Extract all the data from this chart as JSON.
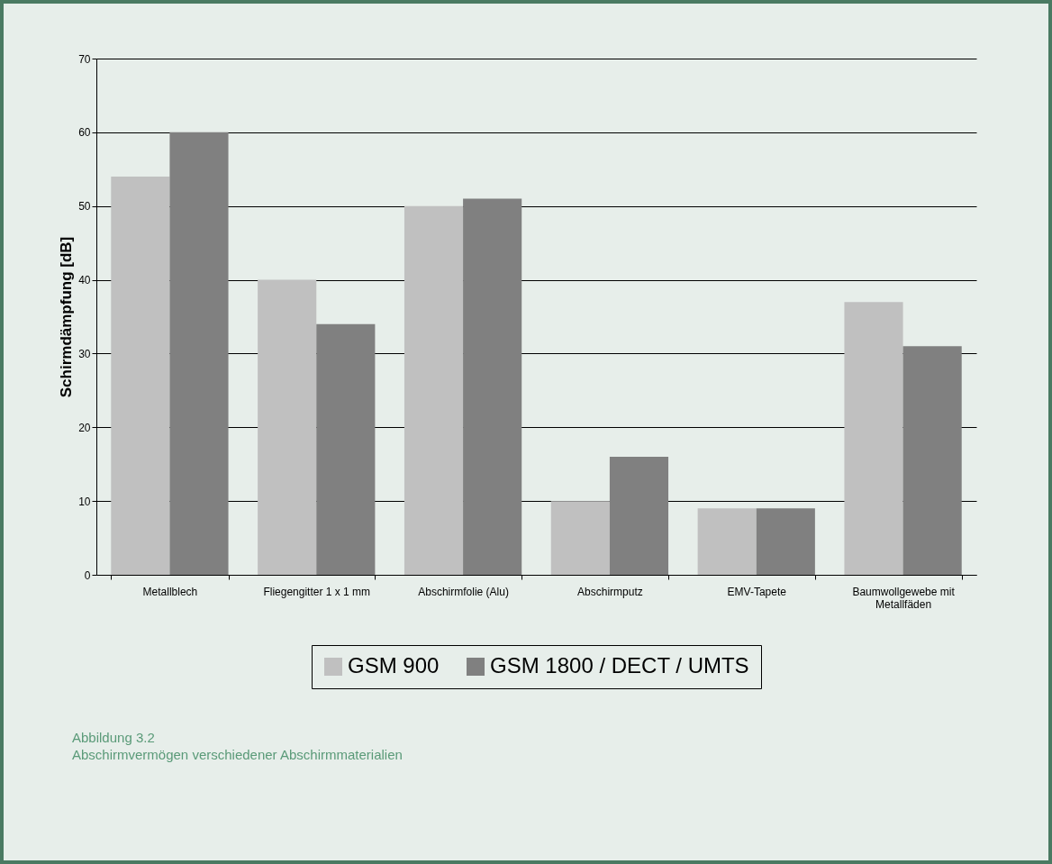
{
  "chart_data": {
    "type": "bar",
    "ylabel": "Schirmdämpfung [dB]",
    "categories": [
      "Metallblech",
      "Fliegengitter 1 x 1 mm",
      "Abschirmfolie (Alu)",
      "Abschirmputz",
      "EMV-Tapete",
      "Baumwollgewebe mit Metallfäden"
    ],
    "series": [
      {
        "name": "GSM 900",
        "color": "#c0c0c0",
        "values": [
          54,
          40,
          50,
          10,
          9,
          37
        ]
      },
      {
        "name": "GSM 1800 / DECT / UMTS",
        "color": "#808080",
        "values": [
          60,
          34,
          51,
          16,
          9,
          31
        ]
      }
    ],
    "ylim": [
      0,
      70
    ],
    "yticks": [
      0,
      10,
      20,
      30,
      40,
      50,
      60,
      70
    ],
    "grid": "y",
    "legend": "bottom",
    "annotations": [
      "Abbildung 3.2",
      "Abschirmvermögen verschiedener Abschirmmaterialien"
    ]
  }
}
